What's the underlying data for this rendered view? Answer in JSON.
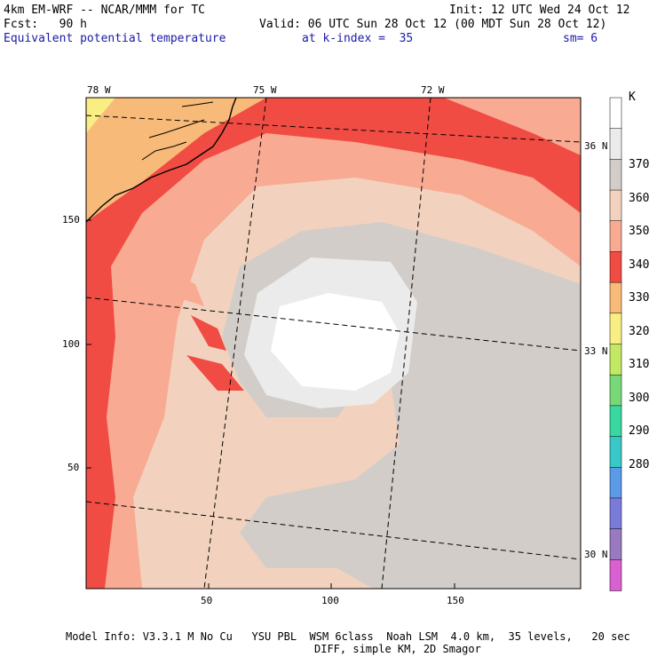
{
  "header": {
    "model_line": "4km EM-WRF -- NCAR/MMM for TC",
    "init_line": "Init: 12 UTC Wed 24 Oct 12",
    "fcst_line": "Fcst:   90 h",
    "valid_line": "Valid: 06 UTC Sun 28 Oct 12 (00 MDT Sun 28 Oct 12)",
    "field_name": "Equivalent potential temperature",
    "level_info": "at k-index =  35",
    "smoothing": "sm= 6"
  },
  "footer": {
    "line1": "Model Info: V3.3.1 M No Cu   YSU PBL  WSM 6class  Noah LSM  4.0 km,  35 levels,   20 sec",
    "line2": "DIFF, simple KM, 2D Smagor"
  },
  "map": {
    "lon_labels": [
      "78 W",
      "75 W",
      "72 W"
    ],
    "lat_labels": [
      "36 N",
      "33 N",
      "30 N"
    ],
    "x_ticks": [
      "50",
      "100",
      "150"
    ],
    "y_ticks": [
      "150",
      "100",
      "50"
    ]
  },
  "colorbar": {
    "unit": "K",
    "labels": [
      "370",
      "360",
      "350",
      "340",
      "330",
      "320",
      "310",
      "300",
      "290",
      "280"
    ],
    "colors": [
      "#ffffff",
      "#ebebeb",
      "#d2cdc8",
      "#f2d2be",
      "#f8ab92",
      "#f04c44",
      "#f8ba78",
      "#f8ee84",
      "#c2e864",
      "#78d878",
      "#38d8a0",
      "#38c8c8",
      "#5a9ae6",
      "#7a7ad8",
      "#9a7abe",
      "#d860d0"
    ]
  }
}
